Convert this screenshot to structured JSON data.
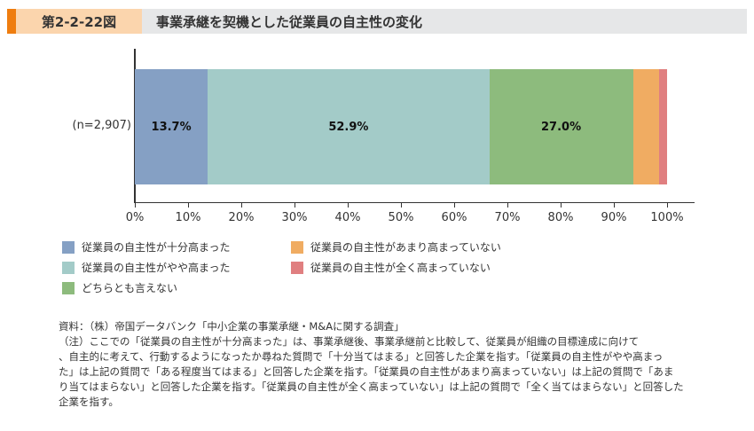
{
  "header": {
    "figure_number": "第2-2-22図",
    "title": "事業承継を契機とした従業員の自主性の変化"
  },
  "chart_data": {
    "type": "bar",
    "orientation": "horizontal",
    "stacked": true,
    "title": "事業承継を契機とした従業員の自主性の変化",
    "categories": [
      "(n=2,907)"
    ],
    "series": [
      {
        "name": "従業員の自主性が十分高まった",
        "values": [
          13.7
        ],
        "color": "#85a0c4",
        "label": "13.7%"
      },
      {
        "name": "従業員の自主性がやや高まった",
        "values": [
          52.9
        ],
        "color": "#a3cbc8",
        "label": "52.9%"
      },
      {
        "name": "どちらとも言えない",
        "values": [
          27.0
        ],
        "color": "#8dbb7d",
        "label": "27.0%"
      },
      {
        "name": "従業員の自主性があまり高まっていない",
        "values": [
          4.9
        ],
        "color": "#f0ac62",
        "label": ""
      },
      {
        "name": "従業員の自主性が全く高まっていない",
        "values": [
          1.5
        ],
        "color": "#e07f80",
        "label": ""
      }
    ],
    "xlabel": "",
    "ylabel": "",
    "xlim": [
      0,
      100
    ],
    "x_ticks": [
      "0%",
      "10%",
      "20%",
      "30%",
      "40%",
      "50%",
      "60%",
      "70%",
      "80%",
      "90%",
      "100%"
    ],
    "grid": false,
    "legend_position": "bottom"
  },
  "legend": [
    {
      "label": "従業員の自主性が十分高まった",
      "color": "#85a0c4"
    },
    {
      "label": "従業員の自主性がやや高まった",
      "color": "#a3cbc8"
    },
    {
      "label": "どちらとも言えない",
      "color": "#8dbb7d"
    },
    {
      "label": "従業員の自主性があまり高まっていない",
      "color": "#f0ac62"
    },
    {
      "label": "従業員の自主性が全く高まっていない",
      "color": "#e07f80"
    }
  ],
  "notes": {
    "lines": [
      "資料：（株）帝国データバンク「中小企業の事業承継・M&Aに関する調査」",
      "（注）ここでの「従業員の自主性が十分高まった」は、事業承継後、事業承継前と比較して、従業員が組織の目標達成に向けて",
      "、自主的に考えて、行動するようになったか尋ねた質問で「十分当てはまる」と回答した企業を指す。「従業員の自主性がやや高まっ",
      "た」は上記の質問で「ある程度当てはまる」と回答した企業を指す。「従業員の自主性があまり高まっていない」は上記の質問で「あま",
      "り当てはまらない」と回答した企業を指す。「従業員の自主性が全く高まっていない」は上記の質問で「全く当てはまらない」と回答した",
      "企業を指す。"
    ]
  }
}
